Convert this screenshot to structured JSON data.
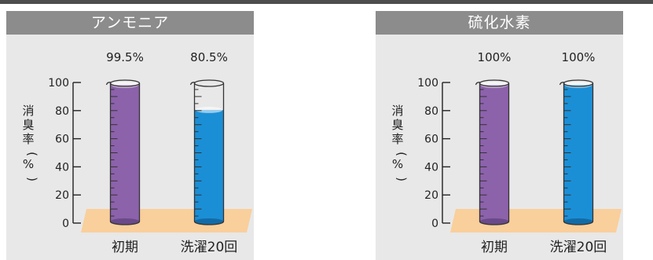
{
  "colors": {
    "panel_bg": "#e8e8e8",
    "title_bg": "#8c8c8c",
    "floor": "#f9cf9b",
    "purple": "#8c62ab",
    "purple_dark": "#6a4a88",
    "blue": "#1b8fd6",
    "blue_dark": "#136ba6"
  },
  "chart_data": [
    {
      "type": "bar",
      "title": "アンモニア",
      "ylabel": "消臭率(%)",
      "ylim": [
        0,
        100
      ],
      "yticks": [
        "0",
        "20",
        "40",
        "60",
        "80",
        "100"
      ],
      "categories": [
        "初期",
        "洗濯20回"
      ],
      "values": [
        99.5,
        80.5
      ],
      "value_labels": [
        "99.5%",
        "80.5%"
      ]
    },
    {
      "type": "bar",
      "title": "硫化水素",
      "ylabel": "消臭率(%)",
      "ylim": [
        0,
        100
      ],
      "yticks": [
        "0",
        "20",
        "40",
        "60",
        "80",
        "100"
      ],
      "categories": [
        "初期",
        "洗濯20回"
      ],
      "values": [
        100,
        100
      ],
      "value_labels": [
        "100%",
        "100%"
      ]
    }
  ]
}
